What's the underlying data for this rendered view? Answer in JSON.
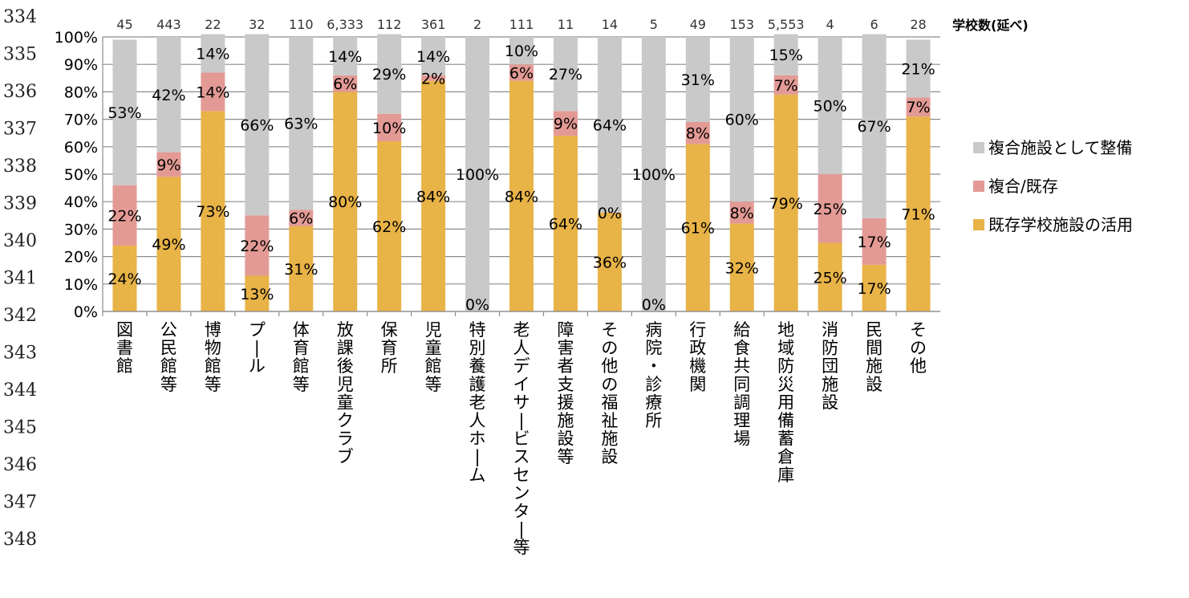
{
  "line_numbers": [
    "334",
    "335",
    "336",
    "337",
    "338",
    "339",
    "340",
    "341",
    "342",
    "343",
    "344",
    "345",
    "346",
    "347",
    "348"
  ],
  "count_title": "学校数(延べ)",
  "chart_data": {
    "type": "bar",
    "stacked": true,
    "percent_scale": true,
    "ylim": [
      0,
      100
    ],
    "y_ticks": [
      "0%",
      "10%",
      "20%",
      "30%",
      "40%",
      "50%",
      "60%",
      "70%",
      "80%",
      "90%",
      "100%"
    ],
    "grid": true,
    "legend_position": "right",
    "categories": [
      "図書館",
      "公民館等",
      "博物館等",
      "プール",
      "体育館等",
      "放課後児童クラブ",
      "保育所",
      "児童館等",
      "特別養護老人ホーム",
      "老人デイサービスセンター等",
      "障害者支援施設等",
      "その他の福祉施設",
      "病院・診療所",
      "行政機関",
      "給食共同調理場",
      "地域防災用備蓄倉庫",
      "消防団施設",
      "民間施設",
      "その他"
    ],
    "counts": [
      "45",
      "443",
      "22",
      "32",
      "110",
      "6,333",
      "112",
      "361",
      "2",
      "111",
      "11",
      "14",
      "5",
      "49",
      "153",
      "5,553",
      "4",
      "6",
      "28"
    ],
    "series": [
      {
        "name": "既存学校施設の活用",
        "color": "#E8B347",
        "values": [
          24,
          49,
          73,
          13,
          31,
          80,
          62,
          84,
          0,
          84,
          64,
          36,
          0,
          61,
          32,
          79,
          25,
          17,
          71
        ],
        "labels": [
          "24%",
          "49%",
          "73%",
          "13%",
          "31%",
          "80%",
          "62%",
          "84%",
          "0%",
          "84%",
          "64%",
          "36%",
          "0%",
          "61%",
          "32%",
          "79%",
          "25%",
          "17%",
          "71%"
        ]
      },
      {
        "name": "複合/既存",
        "color": "#E39A95",
        "values": [
          22,
          9,
          14,
          22,
          6,
          6,
          10,
          2,
          0,
          6,
          9,
          0,
          0,
          8,
          8,
          7,
          25,
          17,
          7
        ],
        "labels": [
          "22%",
          "9%",
          "14%",
          "22%",
          "6%",
          "6%",
          "10%",
          "2%",
          "",
          "6%",
          "9%",
          "0%",
          "",
          "8%",
          "8%",
          "7%",
          "25%",
          "17%",
          "7%"
        ]
      },
      {
        "name": "複合施設として整備",
        "color": "#C9C9C9",
        "values": [
          53,
          42,
          14,
          66,
          63,
          14,
          29,
          14,
          100,
          10,
          27,
          64,
          100,
          31,
          60,
          15,
          50,
          67,
          21
        ],
        "labels": [
          "53%",
          "42%",
          "14%",
          "66%",
          "63%",
          "14%",
          "29%",
          "14%",
          "100%",
          "10%",
          "27%",
          "64%",
          "100%",
          "31%",
          "60%",
          "15%",
          "50%",
          "67%",
          "21%"
        ]
      }
    ],
    "legend": [
      "複合施設として整備",
      "複合/既存",
      "既存学校施設の活用"
    ]
  }
}
